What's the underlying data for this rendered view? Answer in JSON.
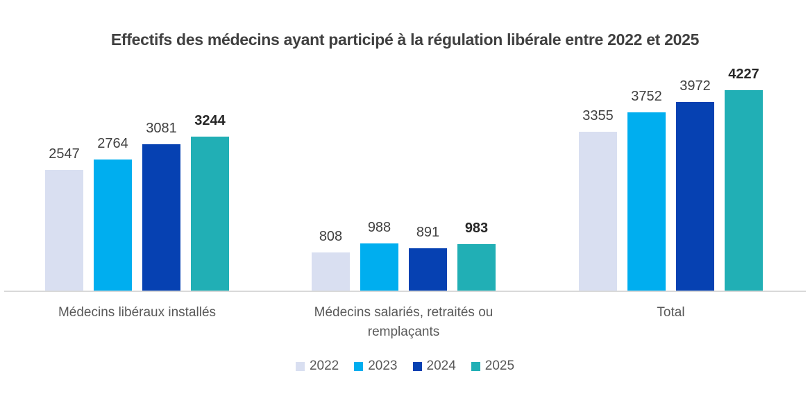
{
  "title": "Effectifs des médecins ayant participé à la régulation libérale entre 2022 et 2025",
  "chart_data": {
    "type": "bar",
    "title": "Effectifs des médecins ayant participé à la régulation libérale entre 2022 et 2025",
    "categories": [
      "Médecins libéraux installés",
      "Médecins salariés, retraités ou remplaçants",
      "Total"
    ],
    "series": [
      {
        "name": "2022",
        "color": "#D9DFF1",
        "values": [
          2547,
          808,
          3355
        ],
        "emphasis": false
      },
      {
        "name": "2023",
        "color": "#00AEEF",
        "values": [
          2764,
          988,
          3752
        ],
        "emphasis": false
      },
      {
        "name": "2024",
        "color": "#0641B2",
        "values": [
          3081,
          891,
          3972
        ],
        "emphasis": false
      },
      {
        "name": "2025",
        "color": "#21AFB5",
        "values": [
          3244,
          983,
          4227
        ],
        "emphasis": true
      }
    ],
    "ylim": [
      0,
      4227
    ],
    "xlabel": "",
    "ylabel": "",
    "grid": false,
    "value_labels": "above each bar; 2025 series labels bold dark",
    "legend_position": "bottom-center",
    "axis_line_color": "#D9D9D9",
    "title_color": "#404040",
    "value_label_color": "#404040",
    "value_label_emphasis_color": "#262626",
    "category_label_color": "#595959",
    "legend_text_color": "#595959"
  }
}
